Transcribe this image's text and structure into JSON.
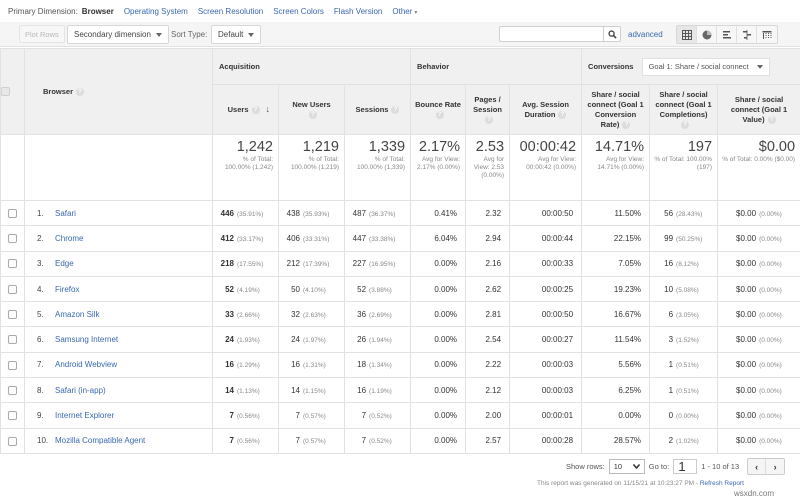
{
  "primary_dimension": {
    "label": "Primary Dimension:",
    "active": "Browser",
    "options": [
      "Operating System",
      "Screen Resolution",
      "Screen Colors",
      "Flash Version",
      "Other"
    ],
    "other_caret": "▾"
  },
  "toolbar": {
    "plot_rows": "Plot Rows",
    "secondary_dimension": "Secondary dimension",
    "sort_type_label": "Sort Type:",
    "sort_type_value": "Default",
    "search_value": "",
    "advanced": "advanced",
    "view_buttons": [
      "table-view",
      "pie-view",
      "performance-view",
      "comparison-view",
      "pivot-view"
    ]
  },
  "table": {
    "dimension_header": "Browser",
    "groups": {
      "acquisition": "Acquisition",
      "behavior": "Behavior",
      "conversions": "Conversions",
      "goal_select": "Goal 1: Share / social connect"
    },
    "columns": {
      "users": "Users",
      "new_users": "New Users",
      "sessions": "Sessions",
      "bounce_rate": "Bounce Rate",
      "pages_session": "Pages / Session",
      "avg_duration": "Avg. Session Duration",
      "conv_rate": "Share / social connect (Goal 1 Conversion Rate)",
      "completions": "Share / social connect (Goal 1 Completions)",
      "value": "Share / social connect (Goal 1 Value)"
    },
    "totals": {
      "users": {
        "main": "1,242",
        "sub": "% of Total: 100.00% (1,242)"
      },
      "new_users": {
        "main": "1,219",
        "sub": "% of Total: 100.00% (1,219)"
      },
      "sessions": {
        "main": "1,339",
        "sub": "% of Total: 100.00% (1,339)"
      },
      "bounce_rate": {
        "main": "2.17%",
        "sub": "Avg for View: 2.17% (0.00%)"
      },
      "pages_session": {
        "main": "2.53",
        "sub": "Avg for View: 2.53 (0.00%)"
      },
      "avg_duration": {
        "main": "00:00:42",
        "sub": "Avg for View: 00:00:42 (0.00%)"
      },
      "conv_rate": {
        "main": "14.71%",
        "sub": "Avg for View: 14.71% (0.00%)"
      },
      "completions": {
        "main": "197",
        "sub": "% of Total: 100.00% (197)"
      },
      "value": {
        "main": "$0.00",
        "sub": "% of Total: 0.00% ($0.00)"
      }
    },
    "rows": [
      {
        "idx": "1.",
        "browser": "Safari",
        "users": "446",
        "users_pct": "(35.91%)",
        "new_users": "438",
        "new_users_pct": "(35.93%)",
        "sessions": "487",
        "sessions_pct": "(36.37%)",
        "bounce": "0.41%",
        "pages": "2.32",
        "duration": "00:00:50",
        "conv_rate": "11.50%",
        "completions": "56",
        "completions_pct": "(28.43%)",
        "value": "$0.00",
        "value_pct": "(0.00%)"
      },
      {
        "idx": "2.",
        "browser": "Chrome",
        "users": "412",
        "users_pct": "(33.17%)",
        "new_users": "406",
        "new_users_pct": "(33.31%)",
        "sessions": "447",
        "sessions_pct": "(33.38%)",
        "bounce": "6.04%",
        "pages": "2.94",
        "duration": "00:00:44",
        "conv_rate": "22.15%",
        "completions": "99",
        "completions_pct": "(50.25%)",
        "value": "$0.00",
        "value_pct": "(0.00%)"
      },
      {
        "idx": "3.",
        "browser": "Edge",
        "users": "218",
        "users_pct": "(17.55%)",
        "new_users": "212",
        "new_users_pct": "(17.39%)",
        "sessions": "227",
        "sessions_pct": "(16.95%)",
        "bounce": "0.00%",
        "pages": "2.16",
        "duration": "00:00:33",
        "conv_rate": "7.05%",
        "completions": "16",
        "completions_pct": "(8.12%)",
        "value": "$0.00",
        "value_pct": "(0.00%)"
      },
      {
        "idx": "4.",
        "browser": "Firefox",
        "users": "52",
        "users_pct": "(4.19%)",
        "new_users": "50",
        "new_users_pct": "(4.10%)",
        "sessions": "52",
        "sessions_pct": "(3.88%)",
        "bounce": "0.00%",
        "pages": "2.62",
        "duration": "00:00:25",
        "conv_rate": "19.23%",
        "completions": "10",
        "completions_pct": "(5.08%)",
        "value": "$0.00",
        "value_pct": "(0.00%)"
      },
      {
        "idx": "5.",
        "browser": "Amazon Silk",
        "users": "33",
        "users_pct": "(2.66%)",
        "new_users": "32",
        "new_users_pct": "(2.63%)",
        "sessions": "36",
        "sessions_pct": "(2.69%)",
        "bounce": "0.00%",
        "pages": "2.81",
        "duration": "00:00:50",
        "conv_rate": "16.67%",
        "completions": "6",
        "completions_pct": "(3.05%)",
        "value": "$0.00",
        "value_pct": "(0.00%)"
      },
      {
        "idx": "6.",
        "browser": "Samsung Internet",
        "users": "24",
        "users_pct": "(1.93%)",
        "new_users": "24",
        "new_users_pct": "(1.97%)",
        "sessions": "26",
        "sessions_pct": "(1.94%)",
        "bounce": "0.00%",
        "pages": "2.54",
        "duration": "00:00:27",
        "conv_rate": "11.54%",
        "completions": "3",
        "completions_pct": "(1.52%)",
        "value": "$0.00",
        "value_pct": "(0.00%)"
      },
      {
        "idx": "7.",
        "browser": "Android Webview",
        "users": "16",
        "users_pct": "(1.29%)",
        "new_users": "16",
        "new_users_pct": "(1.31%)",
        "sessions": "18",
        "sessions_pct": "(1.34%)",
        "bounce": "0.00%",
        "pages": "2.22",
        "duration": "00:00:03",
        "conv_rate": "5.56%",
        "completions": "1",
        "completions_pct": "(0.51%)",
        "value": "$0.00",
        "value_pct": "(0.00%)"
      },
      {
        "idx": "8.",
        "browser": "Safari (in-app)",
        "users": "14",
        "users_pct": "(1.13%)",
        "new_users": "14",
        "new_users_pct": "(1.15%)",
        "sessions": "16",
        "sessions_pct": "(1.19%)",
        "bounce": "0.00%",
        "pages": "2.12",
        "duration": "00:00:03",
        "conv_rate": "6.25%",
        "completions": "1",
        "completions_pct": "(0.51%)",
        "value": "$0.00",
        "value_pct": "(0.00%)"
      },
      {
        "idx": "9.",
        "browser": "Internet Explorer",
        "users": "7",
        "users_pct": "(0.56%)",
        "new_users": "7",
        "new_users_pct": "(0.57%)",
        "sessions": "7",
        "sessions_pct": "(0.52%)",
        "bounce": "0.00%",
        "pages": "2.00",
        "duration": "00:00:01",
        "conv_rate": "0.00%",
        "completions": "0",
        "completions_pct": "(0.00%)",
        "value": "$0.00",
        "value_pct": "(0.00%)"
      },
      {
        "idx": "10.",
        "browser": "Mozilla Compatible Agent",
        "users": "7",
        "users_pct": "(0.56%)",
        "new_users": "7",
        "new_users_pct": "(0.57%)",
        "sessions": "7",
        "sessions_pct": "(0.52%)",
        "bounce": "0.00%",
        "pages": "2.57",
        "duration": "00:00:28",
        "conv_rate": "28.57%",
        "completions": "2",
        "completions_pct": "(1.02%)",
        "value": "$0.00",
        "value_pct": "(0.00%)"
      }
    ]
  },
  "footer": {
    "show_rows_label": "Show rows:",
    "show_rows_value": "10",
    "goto_label": "Go to:",
    "goto_value": "1",
    "range": "1 - 10 of 13",
    "prev": "‹",
    "next": "›",
    "generated_text": "This report was generated on 11/15/21 at 10:23:27 PM - ",
    "refresh": "Refresh Report"
  },
  "watermark": "wsxdn.com",
  "colors": {
    "link": "#3a68b0",
    "header_bg": "#f0f0f0",
    "border": "#e2e2e2"
  }
}
